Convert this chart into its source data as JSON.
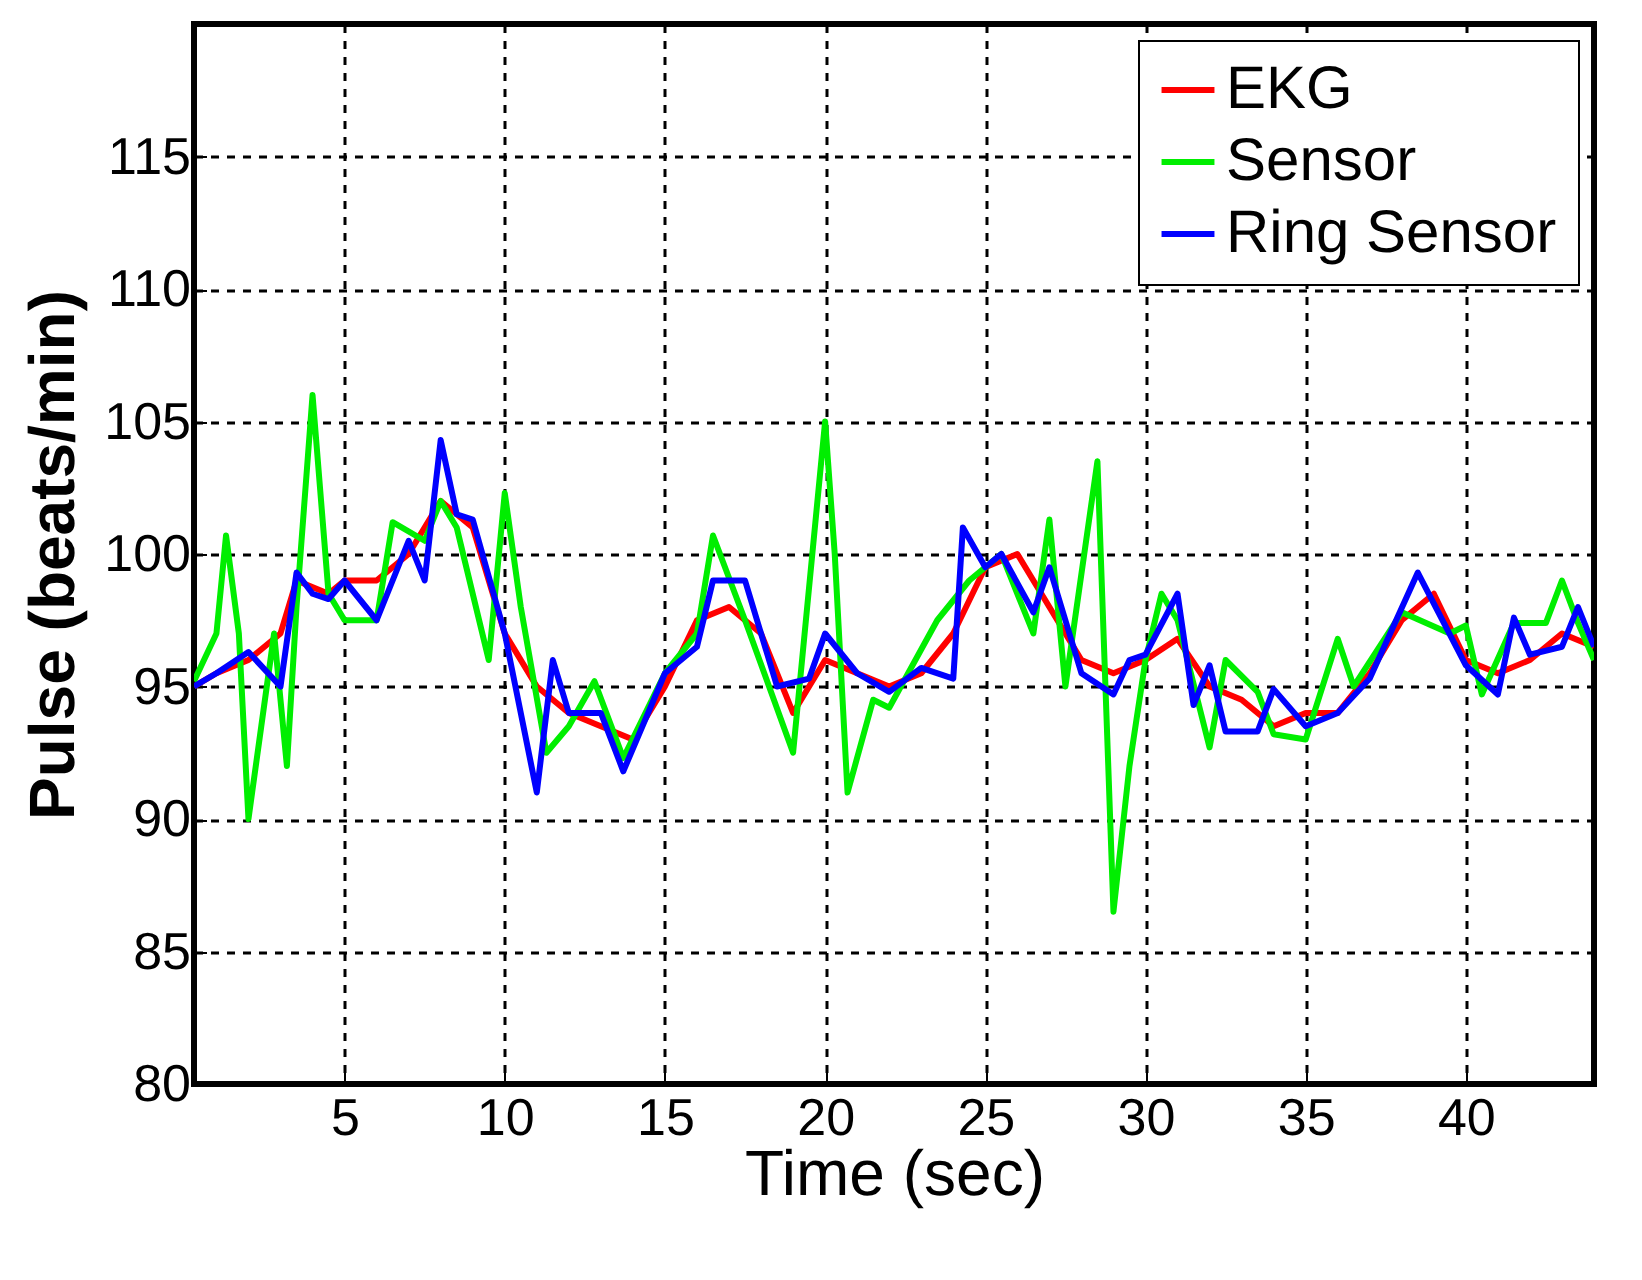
{
  "chart_data": {
    "type": "line",
    "xlabel": "Time (sec)",
    "ylabel": "Pulse (beats/min)",
    "xlim": [
      0.3,
      44
    ],
    "ylim": [
      80,
      120
    ],
    "xticks": [
      5,
      10,
      15,
      20,
      25,
      30,
      35,
      40
    ],
    "yticks": [
      80,
      85,
      90,
      95,
      100,
      105,
      110,
      115
    ],
    "grid": true,
    "legend": "top right",
    "line_style": "solid",
    "marker": "none",
    "series": [
      {
        "name": "EKG",
        "color": "#ff0000",
        "x": [
          0.3,
          1,
          2,
          3,
          3.5,
          4.5,
          5,
          6,
          7,
          8,
          9,
          10,
          11,
          12,
          13,
          14,
          15,
          16,
          17,
          18,
          19,
          20,
          21,
          22,
          23,
          24,
          25,
          26,
          27,
          28,
          29,
          30,
          31,
          32,
          33,
          34,
          35,
          36,
          37,
          38,
          39,
          40,
          41,
          42,
          43,
          44
        ],
        "values": [
          95,
          95.5,
          96,
          97,
          99,
          98.5,
          99,
          99,
          100,
          102,
          101,
          97,
          95,
          94,
          93.5,
          93,
          95,
          97.5,
          98,
          97,
          94,
          96,
          95.5,
          95,
          95.5,
          97,
          99.5,
          100,
          98,
          96,
          95.5,
          96,
          96.8,
          95,
          94.5,
          93.5,
          94,
          94,
          95.5,
          97.5,
          98.5,
          96,
          95.5,
          96,
          97,
          96.5
        ]
      },
      {
        "name": "Sensor",
        "color": "#00ee00",
        "x": [
          0.3,
          1,
          1.3,
          1.7,
          2,
          2.4,
          2.8,
          3.2,
          3.5,
          4,
          4.5,
          5,
          6,
          6.5,
          7.5,
          8,
          8.5,
          9.5,
          10,
          10.5,
          11.3,
          12,
          12.8,
          13.7,
          15,
          16,
          16.5,
          17.5,
          19,
          20,
          20.3,
          20.7,
          21.5,
          22,
          23.5,
          24.5,
          25.5,
          26.5,
          27,
          27.5,
          28.5,
          29,
          29.5,
          30,
          30.5,
          31,
          32,
          32.5,
          33.5,
          34,
          35,
          36,
          36.5,
          38,
          39.5,
          40,
          40.5,
          41.5,
          42.5,
          43,
          43.5,
          44
        ],
        "values": [
          95.2,
          97,
          100.7,
          97,
          90,
          93.5,
          97,
          92,
          98,
          106,
          98.5,
          97.5,
          97.5,
          101.2,
          100.5,
          102,
          101,
          96,
          102.3,
          98,
          92.5,
          93.5,
          95.2,
          92.3,
          95.5,
          97,
          100.7,
          97.5,
          92.5,
          105,
          100,
          91,
          94.5,
          94.2,
          97.5,
          99,
          100,
          97,
          101.3,
          95,
          103.5,
          86.5,
          92,
          96,
          98.5,
          97.5,
          92.7,
          96,
          94.8,
          93.2,
          93,
          96.8,
          95,
          97.8,
          97,
          97.3,
          94.7,
          97.4,
          97.4,
          99,
          97.4,
          96
        ]
      },
      {
        "name": "Ring Sensor",
        "color": "#0000ff",
        "x": [
          0.3,
          1,
          2,
          3,
          3.5,
          4,
          4.5,
          5,
          6,
          7,
          7.5,
          8,
          8.5,
          9,
          10,
          11,
          11.5,
          12,
          13,
          13.7,
          15,
          16,
          16.5,
          17.5,
          18.5,
          19.5,
          20,
          21,
          22,
          23,
          24,
          24.3,
          25,
          25.5,
          26.5,
          27,
          28,
          29,
          29.5,
          30,
          31,
          31.5,
          32,
          32.5,
          33.5,
          34,
          35,
          36,
          37,
          38.5,
          40,
          41,
          41.5,
          42,
          43,
          43.5,
          44
        ],
        "values": [
          95,
          95.5,
          96.3,
          95,
          99.3,
          98.5,
          98.3,
          99,
          97.5,
          100.5,
          99,
          104.3,
          101.5,
          101.3,
          97,
          91,
          96,
          94,
          94,
          91.8,
          95.5,
          96.5,
          99,
          99,
          95,
          95.3,
          97,
          95.5,
          94.8,
          95.7,
          95.3,
          101,
          99.5,
          100,
          97.8,
          99.5,
          95.5,
          94.7,
          96,
          96.2,
          98.5,
          94.3,
          95.8,
          93.3,
          93.3,
          94.9,
          93.5,
          94,
          95.3,
          99.3,
          95.8,
          94.7,
          97.6,
          96.2,
          96.5,
          98,
          96.5
        ]
      }
    ]
  }
}
